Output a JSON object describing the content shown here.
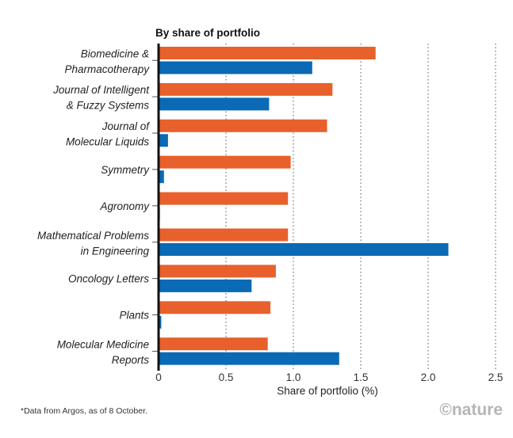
{
  "chart_data": {
    "type": "bar",
    "orientation": "horizontal",
    "title": "By share of portfolio",
    "xlabel": "Share of portfolio (%)",
    "ylabel": "",
    "xlim": [
      0,
      2.6
    ],
    "xticks": [
      "0",
      "0.5",
      "1.0",
      "1.5",
      "2.0",
      "2.5"
    ],
    "tick_values": [
      0,
      0.5,
      1.0,
      1.5,
      2.0,
      2.5
    ],
    "grid": "vertical dotted",
    "categories": [
      [
        "Biomedicine &",
        "Pharmacotherapy"
      ],
      [
        "Journal of Intelligent",
        "& Fuzzy Systems"
      ],
      [
        "Journal of",
        "Molecular Liquids"
      ],
      [
        "Symmetry"
      ],
      [
        "Agronomy"
      ],
      [
        "Mathematical Problems",
        "in Engineering"
      ],
      [
        "Oncology Letters"
      ],
      [
        "Plants"
      ],
      [
        "Molecular Medicine",
        "Reports"
      ]
    ],
    "series": [
      {
        "color": "#e8602c",
        "values": [
          1.61,
          1.29,
          1.25,
          0.98,
          0.96,
          0.96,
          0.87,
          0.83,
          0.81
        ]
      },
      {
        "color": "#0a6ab5",
        "values": [
          1.14,
          0.82,
          0.07,
          0.04,
          0.01,
          2.15,
          0.69,
          0.02,
          1.34
        ]
      }
    ]
  },
  "footnote": "*Data from Argos, as of 8 October.",
  "logo": "©nature"
}
